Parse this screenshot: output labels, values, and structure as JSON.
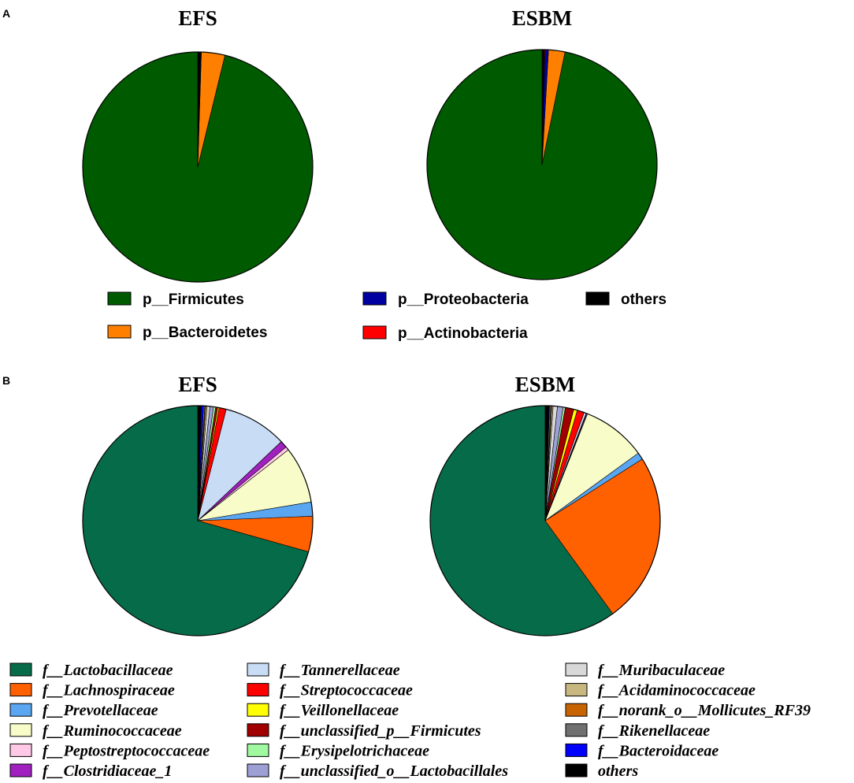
{
  "chart_data": [
    {
      "panel": "A",
      "type": "pie",
      "categories": [
        "p__Firmicutes",
        "p__Bacteroidetes",
        "p__Proteobacteria",
        "p__Actinobacteria",
        "others"
      ],
      "colors": [
        "#005a00",
        "#ff8000",
        "#0000a0",
        "#ff0000",
        "#000000"
      ],
      "pies": [
        {
          "title": "EFS",
          "values": [
            96.2,
            3.3,
            0.1,
            0.05,
            0.35
          ]
        },
        {
          "title": "ESBM",
          "values": [
            96.8,
            2.3,
            0.5,
            0.1,
            0.3
          ]
        }
      ]
    },
    {
      "panel": "B",
      "type": "pie",
      "categories": [
        "f__Lactobacillaceae",
        "f__Lachnospiraceae",
        "f__Prevotellaceae",
        "f__Ruminococcaceae",
        "f__Peptostreptococcaceae",
        "f__Clostridiaceae_1",
        "f__Tannerellaceae",
        "f__Streptococcaceae",
        "f__Veillonellaceae",
        "f__unclassified_p__Firmicutes",
        "f__Erysipelotrichaceae",
        "f__unclassified_o__Lactobacillales",
        "f__Muribaculaceae",
        "f__Acidaminococcaceae",
        "f__norank_o__Mollicutes_RF39",
        "f__Rikenellaceae",
        "f__Bacteroidaceae",
        "others"
      ],
      "colors": [
        "#066b48",
        "#ff6000",
        "#5aa6f0",
        "#f8fcc8",
        "#ffc8e6",
        "#a020c0",
        "#c8dcf6",
        "#ff0000",
        "#ffff00",
        "#a00000",
        "#a0f8a0",
        "#9ca0d4",
        "#d8d8d8",
        "#c8b880",
        "#c86400",
        "#707070",
        "#0000ff",
        "#000000"
      ],
      "pies": [
        {
          "title": "EFS",
          "values": [
            71.0,
            5.0,
            2.0,
            8.0,
            0.5,
            1.0,
            9.0,
            1.0,
            0.2,
            0.3,
            0.3,
            0.5,
            0.4,
            0.2,
            0.1,
            0.2,
            0.3,
            0.5
          ]
        },
        {
          "title": "ESBM",
          "values": [
            60.0,
            24.0,
            1.0,
            9.0,
            0.1,
            0.1,
            0.3,
            1.0,
            0.5,
            1.2,
            0.3,
            0.8,
            0.6,
            0.2,
            0.1,
            0.2,
            0.1,
            0.5
          ]
        }
      ]
    }
  ]
}
